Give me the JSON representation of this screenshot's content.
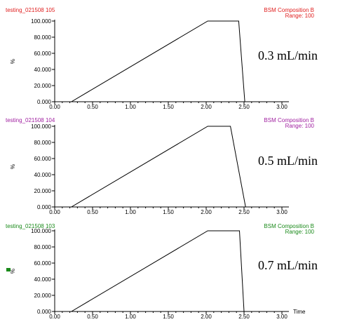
{
  "colors": {
    "panel_title": [
      "#e02020",
      "#a020a0",
      "#1a8a1a"
    ],
    "right_title": [
      "#e02020",
      "#a020a0",
      "#1a8a1a"
    ],
    "axis": "#000000",
    "trace": "#000000",
    "marker": "#1a8a1a"
  },
  "x_axis_title": "Time",
  "x_tick_labels": [
    "0.00",
    "0.50",
    "1.00",
    "1.50",
    "2.00",
    "2.50",
    "3.00"
  ],
  "y_tick_labels": [
    "0.000",
    "20.000",
    "40.000",
    "60.000",
    "80.000",
    "100.000"
  ],
  "chart_data": [
    {
      "type": "line",
      "title": "testing_021508 105",
      "subtitle": "BSM Composition B",
      "range_label": "Range: 100",
      "ylabel": "%",
      "annotation": "0.3 mL/min",
      "xlim": [
        0,
        3
      ],
      "ylim": [
        0,
        100
      ],
      "x": [
        0.0,
        0.22,
        2.02,
        2.43,
        2.51,
        3.0
      ],
      "y": [
        0,
        0,
        100,
        100,
        0,
        0
      ]
    },
    {
      "type": "line",
      "title": "testing_021508 104",
      "subtitle": "BSM Composition B",
      "range_label": "Range: 100",
      "ylabel": "%",
      "annotation": "0.5 mL/min",
      "xlim": [
        0,
        3
      ],
      "ylim": [
        0,
        100
      ],
      "x": [
        0.0,
        0.22,
        2.02,
        2.32,
        2.52,
        3.0
      ],
      "y": [
        0,
        0,
        100,
        100,
        0,
        0
      ]
    },
    {
      "type": "line",
      "title": "testing_021508 103",
      "subtitle": "BSM Composition B",
      "range_label": "Range: 100",
      "ylabel": "%",
      "annotation": "0.7 mL/min",
      "xlim": [
        0,
        3
      ],
      "ylim": [
        0,
        100
      ],
      "x": [
        0.0,
        0.22,
        2.02,
        2.44,
        2.5,
        3.0
      ],
      "y": [
        0,
        0,
        100,
        100,
        0,
        0
      ]
    }
  ]
}
